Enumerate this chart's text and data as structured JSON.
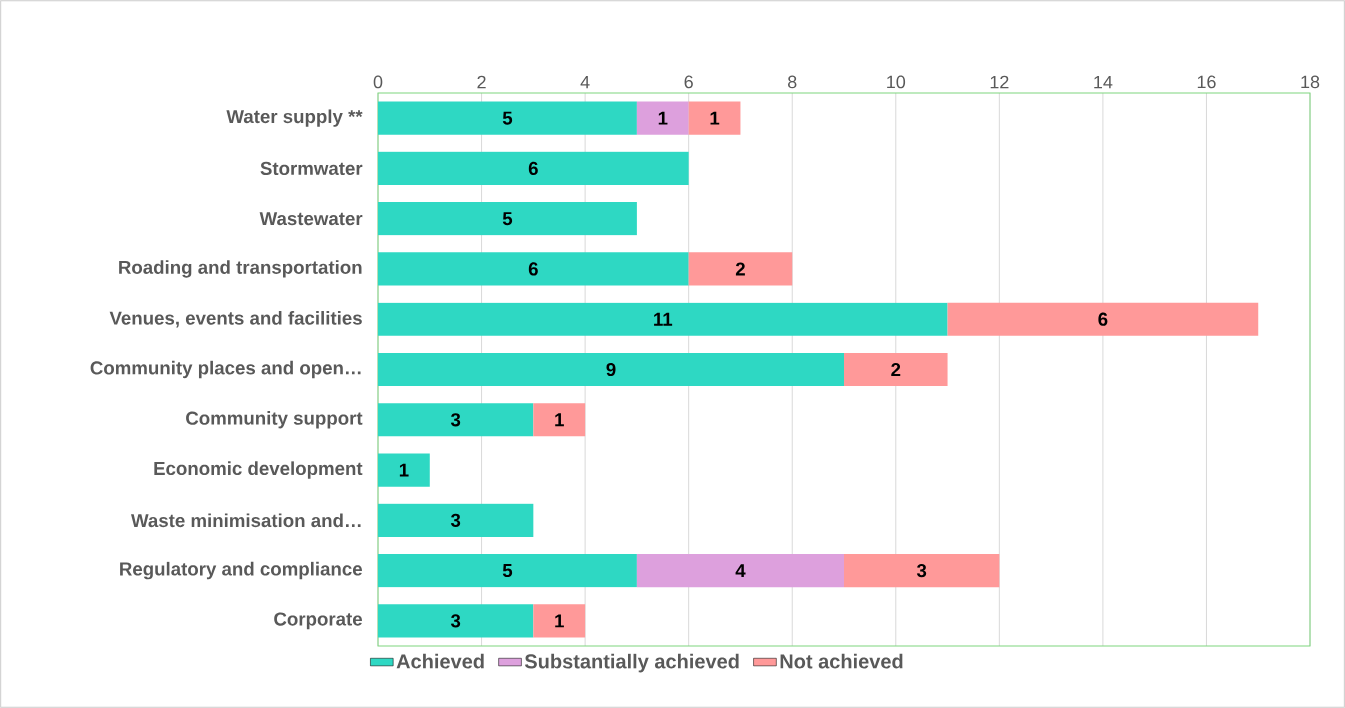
{
  "chart_data": {
    "type": "bar",
    "orientation": "horizontal",
    "stacked": true,
    "categories": [
      "Water supply **",
      "Stormwater",
      "Wastewater",
      "Roading and transportation",
      "Venues, events and facilities",
      "Community places and open…",
      "Community support",
      "Economic development",
      "Waste minimisation and…",
      "Regulatory and compliance",
      "Corporate"
    ],
    "series": [
      {
        "name": "Achieved",
        "color": "#2ed8c3",
        "values": [
          5,
          6,
          5,
          6,
          11,
          9,
          3,
          1,
          3,
          5,
          3
        ]
      },
      {
        "name": "Substantially achieved",
        "color": "#dda0dd",
        "values": [
          1,
          null,
          null,
          null,
          null,
          null,
          null,
          null,
          null,
          4,
          null
        ]
      },
      {
        "name": "Not achieved",
        "color": "#ff9999",
        "values": [
          1,
          null,
          null,
          2,
          6,
          2,
          1,
          null,
          null,
          3,
          1
        ]
      }
    ],
    "xlim": [
      0,
      18
    ],
    "xticks": [
      0,
      2,
      4,
      6,
      8,
      10,
      12,
      14,
      16,
      18
    ],
    "grid": "x",
    "legend": "bottom",
    "data_labels": true
  }
}
